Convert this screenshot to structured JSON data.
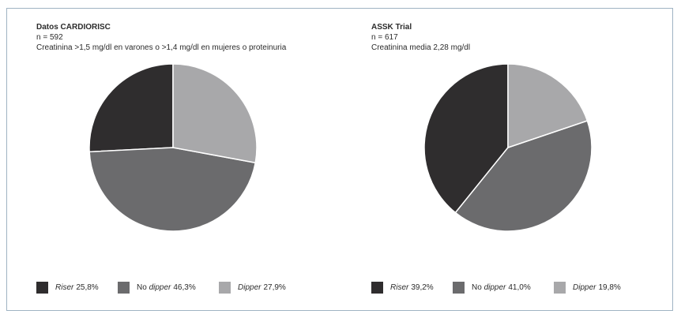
{
  "colors": {
    "riser": "#2f2d2e",
    "no_dipper": "#6b6b6d",
    "dipper": "#a8a8aa",
    "frame": "#9fb3c3"
  },
  "chart_data": [
    {
      "type": "pie",
      "title": "Datos CARDIORISC",
      "subtitle_lines": [
        "n = 592",
        "Creatinina >1,5 mg/dl en varones o >1,4 mg/dl en mujeres o proteinuria"
      ],
      "slices": [
        {
          "name": "Riser",
          "value": 25.8,
          "label_prefix": "",
          "label_italic": "Riser",
          "value_text": "25,8%",
          "color_key": "riser"
        },
        {
          "name": "No dipper",
          "value": 46.3,
          "label_prefix": "No ",
          "label_italic": "dipper",
          "value_text": "46,3%",
          "color_key": "no_dipper"
        },
        {
          "name": "Dipper",
          "value": 27.9,
          "label_prefix": "",
          "label_italic": "Dipper",
          "value_text": "27,9%",
          "color_key": "dipper"
        }
      ],
      "legend": "bottom"
    },
    {
      "type": "pie",
      "title": "ASSK Trial",
      "subtitle_lines": [
        "n = 617",
        "Creatinina media 2,28 mg/dl"
      ],
      "slices": [
        {
          "name": "Riser",
          "value": 39.2,
          "label_prefix": "",
          "label_italic": "Riser",
          "value_text": "39,2%",
          "color_key": "riser"
        },
        {
          "name": "No dipper",
          "value": 41.0,
          "label_prefix": "No ",
          "label_italic": "dipper",
          "value_text": "41,0%",
          "color_key": "no_dipper"
        },
        {
          "name": "Dipper",
          "value": 19.8,
          "label_prefix": "",
          "label_italic": "Dipper",
          "value_text": "19,8%",
          "color_key": "dipper"
        }
      ],
      "legend": "bottom"
    }
  ]
}
